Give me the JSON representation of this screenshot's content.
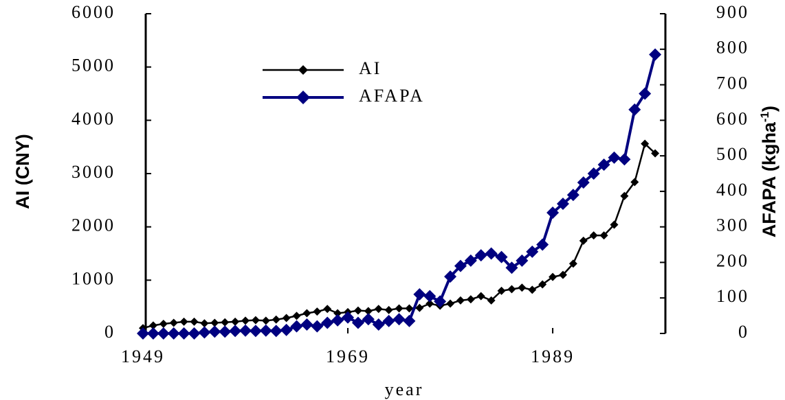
{
  "chart_data": {
    "type": "line",
    "x_label": "year",
    "y_label": "AI (CNY)",
    "y2_label": {
      "main": "AFAPA (kgha",
      "sup": "-1",
      "end": ")"
    },
    "x": [
      1949,
      1950,
      1951,
      1952,
      1953,
      1954,
      1955,
      1956,
      1957,
      1958,
      1959,
      1960,
      1961,
      1962,
      1963,
      1964,
      1965,
      1966,
      1967,
      1968,
      1969,
      1970,
      1971,
      1972,
      1973,
      1974,
      1975,
      1976,
      1977,
      1978,
      1979,
      1980,
      1981,
      1982,
      1983,
      1984,
      1985,
      1986,
      1987,
      1988,
      1989,
      1990,
      1991,
      1992,
      1993,
      1994,
      1995,
      1996,
      1997,
      1998,
      1999
    ],
    "series": [
      {
        "name": "AI",
        "color": "#000000",
        "values": [
          100,
          150,
          180,
          200,
          220,
          220,
          190,
          200,
          210,
          220,
          240,
          250,
          240,
          260,
          290,
          330,
          380,
          410,
          460,
          380,
          400,
          430,
          420,
          460,
          440,
          470,
          470,
          480,
          560,
          520,
          560,
          620,
          640,
          700,
          620,
          800,
          830,
          860,
          820,
          920,
          1060,
          1100,
          1310,
          1740,
          1840,
          1840,
          2040,
          2580,
          2840,
          3560,
          3380
        ]
      },
      {
        "name": "AFAPA",
        "color": "#000080",
        "axis": "y2",
        "values": [
          0,
          0,
          0,
          0,
          0,
          0,
          3,
          5,
          5,
          7,
          8,
          7,
          8,
          7,
          10,
          20,
          25,
          20,
          30,
          37,
          45,
          30,
          40,
          25,
          35,
          40,
          35,
          110,
          105,
          90,
          160,
          190,
          205,
          220,
          225,
          215,
          185,
          205,
          230,
          250,
          340,
          365,
          390,
          425,
          450,
          475,
          495,
          490,
          630,
          675,
          785
        ]
      }
    ],
    "xlim": [
      1949,
      2000
    ],
    "xticks": [
      1949,
      1969,
      1989
    ],
    "ylim": [
      0,
      6000
    ],
    "yticks": [
      0,
      1000,
      2000,
      3000,
      4000,
      5000,
      6000
    ],
    "y2lim": [
      0,
      900
    ],
    "y2ticks": [
      0,
      100,
      200,
      300,
      400,
      500,
      600,
      700,
      800,
      900
    ]
  }
}
